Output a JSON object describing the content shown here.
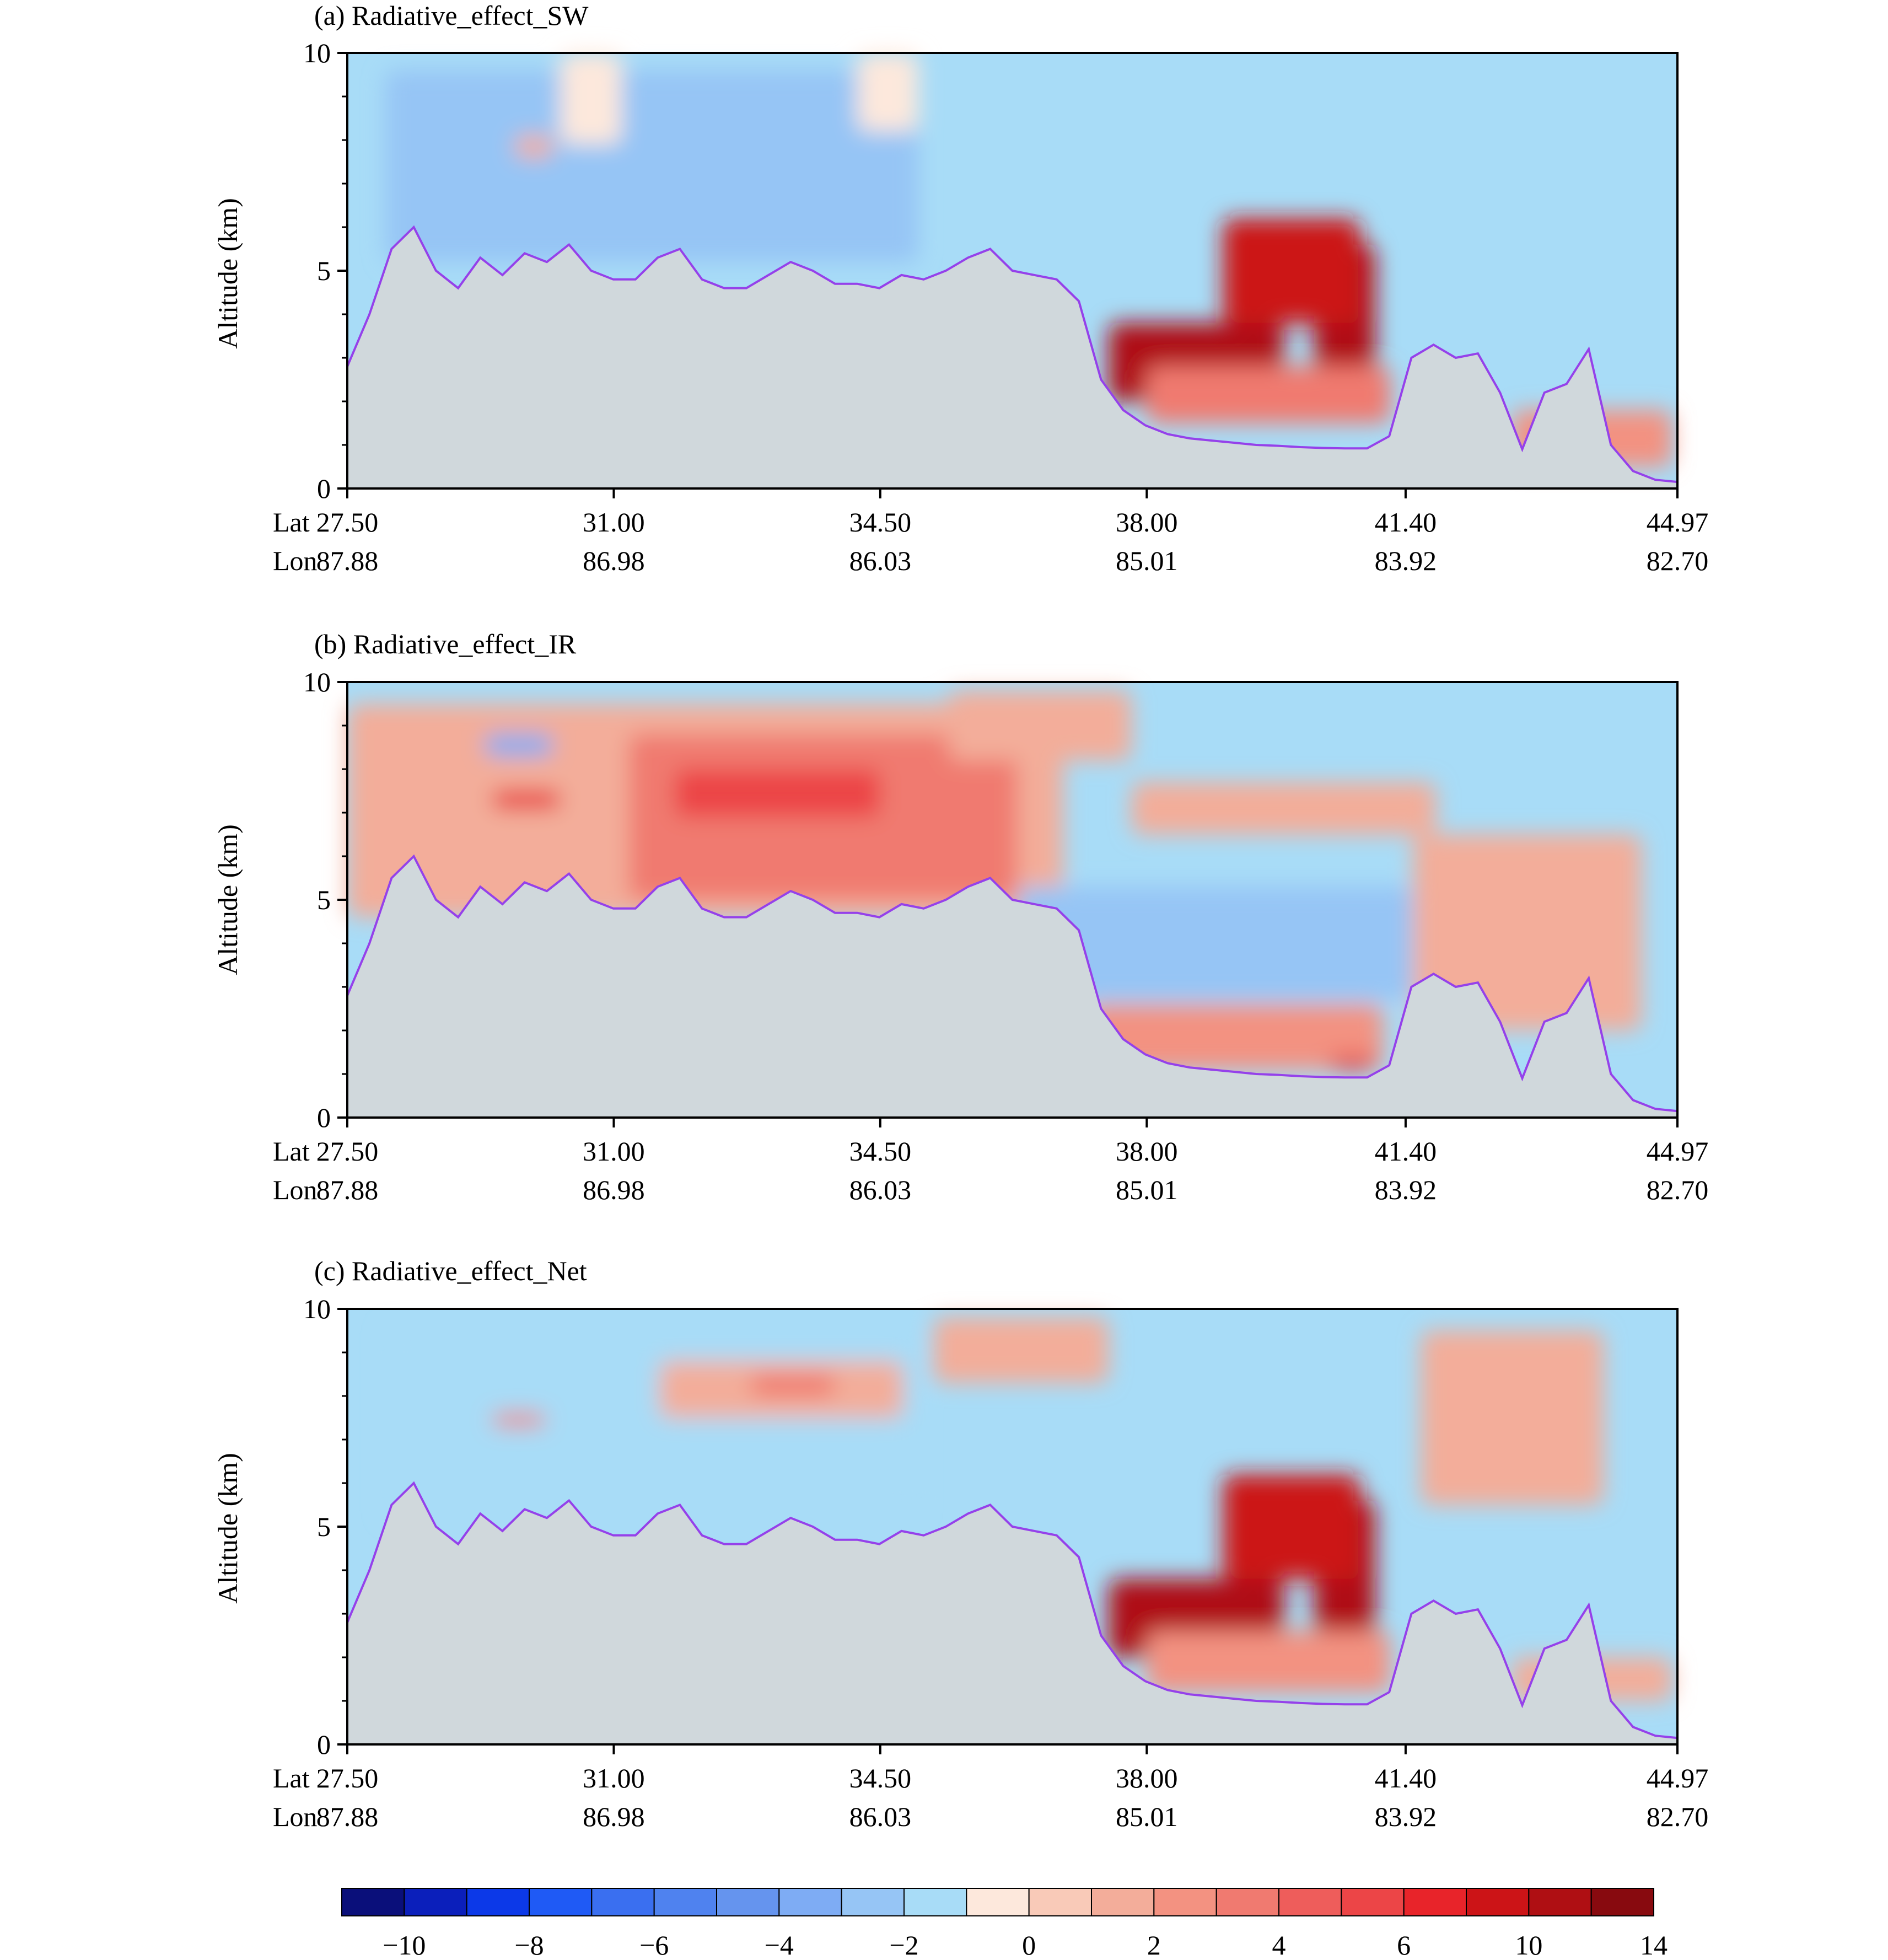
{
  "chart_data": [
    {
      "id": "a",
      "type": "heatmap",
      "title": "(a) Radiative_effect_SW",
      "ylabel": "Altitude (km)",
      "ylim": [
        0,
        10
      ],
      "yticks": [
        "0",
        "5",
        "10"
      ],
      "x_row_labels": [
        "Lat",
        "Lon"
      ],
      "lat_ticks": [
        "27.50",
        "31.00",
        "34.50",
        "38.00",
        "41.40",
        "44.97"
      ],
      "lon_ticks": [
        "87.88",
        "86.98",
        "86.03",
        "85.01",
        "83.92",
        "82.70"
      ],
      "xlim_lat": [
        27.5,
        44.97
      ],
      "terrain_km": [
        2.8,
        4.0,
        5.5,
        6.0,
        5.0,
        4.6,
        5.3,
        4.9,
        5.4,
        5.2,
        5.6,
        5.0,
        4.8,
        4.8,
        5.3,
        5.5,
        4.8,
        4.6,
        4.6,
        4.9,
        5.2,
        5.0,
        4.7,
        4.7,
        4.6,
        4.9,
        4.8,
        5.0,
        5.3,
        5.5,
        5.0,
        4.9,
        4.8,
        4.3,
        2.5,
        1.8,
        1.45,
        1.25,
        1.15,
        1.1,
        1.05,
        1.0,
        0.98,
        0.95,
        0.93,
        0.92,
        0.92,
        1.2,
        3.0,
        3.3,
        3.0,
        3.1,
        2.2,
        0.9,
        2.2,
        2.4,
        3.2,
        1.0,
        0.4,
        0.2,
        0.15
      ],
      "field": [
        {
          "lat": [
            28.3,
            33.7
          ],
          "alt": [
            7.0,
            8.1
          ],
          "value": -5
        },
        {
          "lat": [
            28.0,
            35.0
          ],
          "alt": [
            5.2,
            9.6
          ],
          "value": -3
        },
        {
          "lat": [
            30.3,
            31.1
          ],
          "alt": [
            7.9,
            10.0
          ],
          "value": -1
        },
        {
          "lat": [
            34.2,
            35.0
          ],
          "alt": [
            8.2,
            10.0
          ],
          "value": -1
        },
        {
          "lat": [
            29.7,
            30.2
          ],
          "alt": [
            7.6,
            8.1
          ],
          "value": 1
        },
        {
          "lat": [
            37.5,
            39.8
          ],
          "alt": [
            2.0,
            3.8
          ],
          "value": 10
        },
        {
          "lat": [
            40.2,
            41.0
          ],
          "alt": [
            2.0,
            5.6
          ],
          "value": 10
        },
        {
          "lat": [
            39.0,
            40.8
          ],
          "alt": [
            3.8,
            6.2
          ],
          "value": 8
        },
        {
          "lat": [
            38.0,
            41.2
          ],
          "alt": [
            1.5,
            2.8
          ],
          "value": 3
        },
        {
          "lat": [
            42.8,
            44.9
          ],
          "alt": [
            0.5,
            1.8
          ],
          "value": 2
        }
      ]
    },
    {
      "id": "b",
      "type": "heatmap",
      "title": "(b) Radiative_effect_IR",
      "ylabel": "Altitude (km)",
      "ylim": [
        0,
        10
      ],
      "yticks": [
        "0",
        "5",
        "10"
      ],
      "x_row_labels": [
        "Lat",
        "Lon"
      ],
      "lat_ticks": [
        "27.50",
        "31.00",
        "34.50",
        "38.00",
        "41.40",
        "44.97"
      ],
      "lon_ticks": [
        "87.88",
        "86.98",
        "86.03",
        "85.01",
        "83.92",
        "82.70"
      ],
      "xlim_lat": [
        27.5,
        44.97
      ],
      "terrain_km": [
        2.8,
        4.0,
        5.5,
        6.0,
        5.0,
        4.6,
        5.3,
        4.9,
        5.4,
        5.2,
        5.6,
        5.0,
        4.8,
        4.8,
        5.3,
        5.5,
        4.8,
        4.6,
        4.6,
        4.9,
        5.2,
        5.0,
        4.7,
        4.7,
        4.6,
        4.9,
        4.8,
        5.0,
        5.3,
        5.5,
        5.0,
        4.9,
        4.8,
        4.3,
        2.5,
        1.8,
        1.45,
        1.25,
        1.15,
        1.1,
        1.05,
        1.0,
        0.98,
        0.95,
        0.93,
        0.92,
        0.92,
        1.2,
        3.0,
        3.3,
        3.0,
        3.1,
        2.2,
        0.9,
        2.2,
        2.4,
        3.2,
        1.0,
        0.4,
        0.2,
        0.15
      ],
      "field": [
        {
          "lat": [
            27.5,
            36.9
          ],
          "alt": [
            4.6,
            9.5
          ],
          "value": 1
        },
        {
          "lat": [
            31.2,
            36.3
          ],
          "alt": [
            5.0,
            8.8
          ],
          "value": 3
        },
        {
          "lat": [
            31.8,
            34.5
          ],
          "alt": [
            6.9,
            8.0
          ],
          "value": 5
        },
        {
          "lat": [
            29.4,
            30.3
          ],
          "alt": [
            7.1,
            7.5
          ],
          "value": 6
        },
        {
          "lat": [
            29.3,
            30.2
          ],
          "alt": [
            8.3,
            8.8
          ],
          "value": -4
        },
        {
          "lat": [
            36.3,
            41.5
          ],
          "alt": [
            2.7,
            5.3
          ],
          "value": -3
        },
        {
          "lat": [
            37.2,
            41.1
          ],
          "alt": [
            1.1,
            2.6
          ],
          "value": 2
        },
        {
          "lat": [
            40.4,
            41.0
          ],
          "alt": [
            1.1,
            1.4
          ],
          "value": 6
        },
        {
          "lat": [
            41.5,
            44.5
          ],
          "alt": [
            2.0,
            6.5
          ],
          "value": 1
        },
        {
          "lat": [
            35.4,
            37.8
          ],
          "alt": [
            8.2,
            9.8
          ],
          "value": 1
        },
        {
          "lat": [
            37.8,
            41.8
          ],
          "alt": [
            6.5,
            7.7
          ],
          "value": 1
        }
      ]
    },
    {
      "id": "c",
      "type": "heatmap",
      "title": "(c) Radiative_effect_Net",
      "ylabel": "Altitude (km)",
      "ylim": [
        0,
        10
      ],
      "yticks": [
        "0",
        "5",
        "10"
      ],
      "x_row_labels": [
        "Lat",
        "Lon"
      ],
      "lat_ticks": [
        "27.50",
        "31.00",
        "34.50",
        "38.00",
        "41.40",
        "44.97"
      ],
      "lon_ticks": [
        "87.88",
        "86.98",
        "86.03",
        "85.01",
        "83.92",
        "82.70"
      ],
      "xlim_lat": [
        27.5,
        44.97
      ],
      "terrain_km": [
        2.8,
        4.0,
        5.5,
        6.0,
        5.0,
        4.6,
        5.3,
        4.9,
        5.4,
        5.2,
        5.6,
        5.0,
        4.8,
        4.8,
        5.3,
        5.5,
        4.8,
        4.6,
        4.6,
        4.9,
        5.2,
        5.0,
        4.7,
        4.7,
        4.6,
        4.9,
        4.8,
        5.0,
        5.3,
        5.5,
        5.0,
        4.9,
        4.8,
        4.3,
        2.5,
        1.8,
        1.45,
        1.25,
        1.15,
        1.1,
        1.05,
        1.0,
        0.98,
        0.95,
        0.93,
        0.92,
        0.92,
        1.2,
        3.0,
        3.3,
        3.0,
        3.1,
        2.2,
        0.9,
        2.2,
        2.4,
        3.2,
        1.0,
        0.4,
        0.2,
        0.15
      ],
      "field": [
        {
          "lat": [
            28.0,
            35.0
          ],
          "alt": [
            5.2,
            9.6
          ],
          "value": -2
        },
        {
          "lat": [
            31.6,
            34.8
          ],
          "alt": [
            7.5,
            8.8
          ],
          "value": 1
        },
        {
          "lat": [
            32.8,
            33.9
          ],
          "alt": [
            8.0,
            8.5
          ],
          "value": 3
        },
        {
          "lat": [
            29.4,
            30.1
          ],
          "alt": [
            7.3,
            7.6
          ],
          "value": 3
        },
        {
          "lat": [
            35.2,
            37.5
          ],
          "alt": [
            8.3,
            9.8
          ],
          "value": 1
        },
        {
          "lat": [
            37.5,
            39.8
          ],
          "alt": [
            2.0,
            3.8
          ],
          "value": 10
        },
        {
          "lat": [
            40.2,
            41.0
          ],
          "alt": [
            2.0,
            5.6
          ],
          "value": 10
        },
        {
          "lat": [
            39.0,
            40.8
          ],
          "alt": [
            3.8,
            6.2
          ],
          "value": 8
        },
        {
          "lat": [
            38.0,
            41.2
          ],
          "alt": [
            1.2,
            2.6
          ],
          "value": 2
        },
        {
          "lat": [
            41.6,
            44.0
          ],
          "alt": [
            5.5,
            9.5
          ],
          "value": 1
        },
        {
          "lat": [
            42.8,
            44.9
          ],
          "alt": [
            1.0,
            2.0
          ],
          "value": 1
        }
      ]
    }
  ],
  "colorbar": {
    "tick_labels": [
      "−10",
      "−8",
      "−6",
      "−4",
      "−2",
      "0",
      "2",
      "4",
      "6",
      "10",
      "14"
    ],
    "colors": [
      "#0a0f7a",
      "#0b1fbb",
      "#0c39e8",
      "#1f5af5",
      "#3a6ff0",
      "#4f82ef",
      "#6594ee",
      "#7eacf4",
      "#96c5f5",
      "#a8dcf7",
      "#fde8dc",
      "#f9cab8",
      "#f3ad9a",
      "#f39281",
      "#f07a70",
      "#ee5d5b",
      "#ec4547",
      "#e8242a",
      "#cc1417",
      "#af0f13",
      "#880a0f"
    ]
  },
  "style": {
    "terrain_fill": "#d0d8dc",
    "terrain_line": "#9541ea",
    "background_blue": "#a8dcf7"
  }
}
